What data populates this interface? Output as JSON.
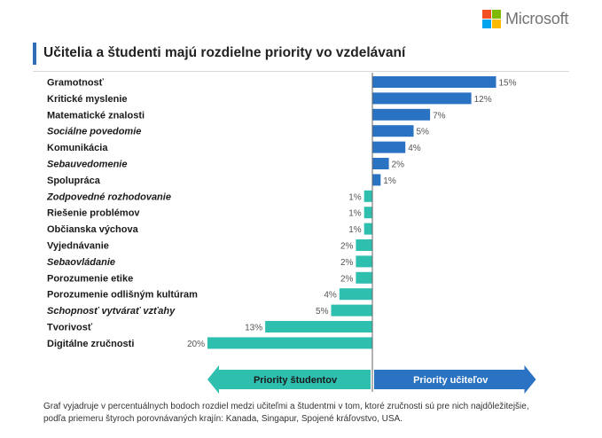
{
  "brand": {
    "name": "Microsoft",
    "colors": [
      "#f25022",
      "#7fba00",
      "#00a4ef",
      "#ffb900"
    ]
  },
  "title": "Učitelia a študenti majú rozdielne priority vo vzdelávaní",
  "footnote": "Graf vyjadruje v percentuálnych bodoch rozdiel medzi učiteľmi a študentmi v tom, ktoré zručnosti sú pre nich najdôležitejšie, podľa priemeru štyroch porovnávaných krajín: Kanada, Singapur, Spojené kráľovstvo, USA.",
  "colors": {
    "teachers": "#2a72c2",
    "students": "#2ebfaf",
    "title_accent": "#2f6db5"
  },
  "chart_data": {
    "type": "bar",
    "orientation": "horizontal",
    "categories": [
      "Gramotnosť",
      "Kritické myslenie",
      "Matematické znalosti",
      "Sociálne povedomie",
      "Komunikácia",
      "Sebauvedomenie",
      "Spolupráca",
      "Zodpovedné rozhodovanie",
      "Riešenie problémov",
      "Občianska výchova",
      "Vyjednávanie",
      "Sebaovládanie",
      "Porozumenie etike",
      "Porozumenie odlišným kultúram",
      "Schopnosť vytvárať vzťahy",
      "Tvorivosť",
      "Digitálne zručnosti"
    ],
    "italic_categories": [
      "Sociálne povedomie",
      "Sebauvedomenie",
      "Zodpovedné rozhodovanie",
      "Sebaovládanie",
      "Schopnosť vytvárať vzťahy"
    ],
    "values": [
      15,
      12,
      7,
      5,
      4,
      2,
      1,
      -1,
      -1,
      -1,
      -2,
      -2,
      -2,
      -4,
      -5,
      -13,
      -20
    ],
    "value_labels": [
      "15%",
      "12%",
      "7%",
      "5%",
      "4%",
      "2%",
      "1%",
      "1%",
      "1%",
      "1%",
      "2%",
      "2%",
      "2%",
      "4%",
      "5%",
      "13%",
      "20%"
    ],
    "unit": "%",
    "xlim": [
      -20,
      15
    ],
    "direction_labels": {
      "negative": "Priority študentov",
      "positive": "Priority učiteľov"
    },
    "grid": false
  }
}
